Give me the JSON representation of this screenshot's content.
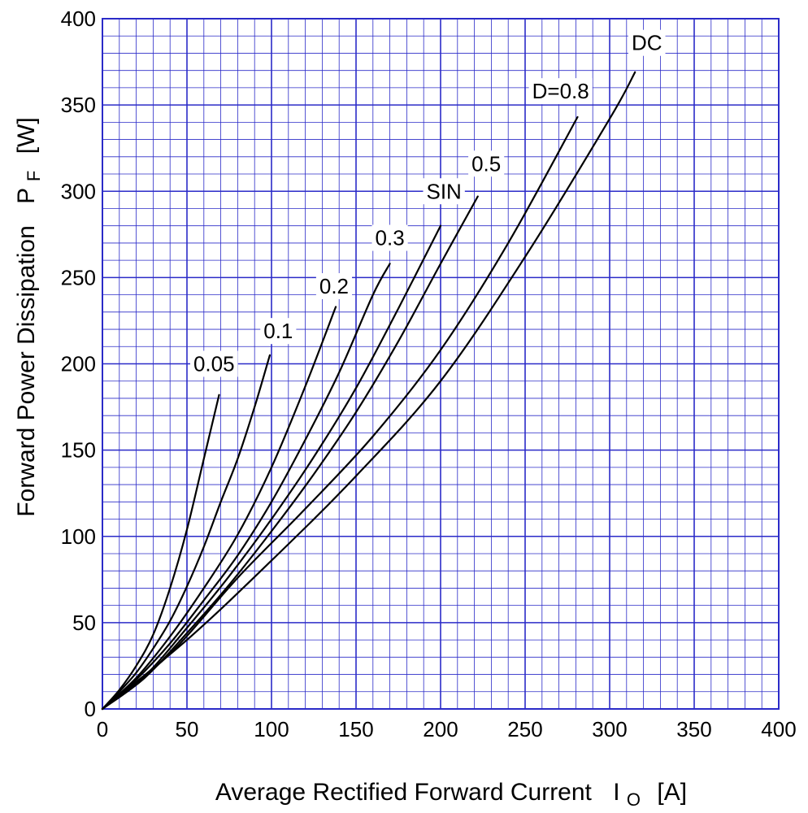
{
  "chart_data": {
    "type": "line",
    "title": "",
    "xlabel": {
      "main": "Average Rectified Forward Current",
      "symbol": "I",
      "subscript": "O",
      "unit": "[A]"
    },
    "ylabel": {
      "main": "Forward Power Dissipation",
      "symbol": "P",
      "subscript": "F",
      "unit": "[W]"
    },
    "xlim": [
      0,
      400
    ],
    "ylim": [
      0,
      400
    ],
    "x_ticks": [
      "0",
      "50",
      "100",
      "150",
      "200",
      "250",
      "300",
      "350",
      "400"
    ],
    "y_ticks": [
      "0",
      "50",
      "100",
      "150",
      "200",
      "250",
      "300",
      "350",
      "400"
    ],
    "x_tick_values": [
      0,
      50,
      100,
      150,
      200,
      250,
      300,
      350,
      400
    ],
    "y_tick_values": [
      0,
      50,
      100,
      150,
      200,
      250,
      300,
      350,
      400
    ],
    "grid": {
      "major_step": 50,
      "minor_step": 10,
      "color": "#2b2bc8"
    },
    "curve_color": "#000000",
    "series": [
      {
        "name": "0.05",
        "label": "0.05",
        "x": [
          0,
          10,
          20,
          30,
          40,
          50,
          60,
          69
        ],
        "y": [
          0,
          11,
          25,
          43,
          70,
          104,
          145,
          182
        ]
      },
      {
        "name": "0.1",
        "label": "0.1",
        "x": [
          0,
          10,
          20,
          30,
          40,
          50,
          60,
          70,
          80,
          90,
          99
        ],
        "y": [
          0,
          10,
          21,
          35,
          51,
          71,
          94,
          120,
          145,
          175,
          205
        ]
      },
      {
        "name": "0.2",
        "label": "0.2",
        "x": [
          0,
          20,
          40,
          60,
          80,
          100,
          120,
          138
        ],
        "y": [
          0,
          18,
          42,
          70,
          101,
          140,
          187,
          233
        ]
      },
      {
        "name": "0.3",
        "label": "0.3",
        "x": [
          0,
          20,
          40,
          60,
          80,
          100,
          120,
          140,
          160,
          170
        ],
        "y": [
          0,
          17,
          38,
          63,
          89,
          120,
          156,
          195,
          240,
          258
        ]
      },
      {
        "name": "SIN",
        "label": "SIN",
        "x": [
          0,
          25,
          50,
          75,
          100,
          125,
          150,
          175,
          200
        ],
        "y": [
          0,
          19,
          47,
          77,
          110,
          146,
          186,
          232,
          280
        ]
      },
      {
        "name": "0.5",
        "label": "0.5",
        "x": [
          0,
          25,
          50,
          75,
          100,
          125,
          150,
          175,
          200,
          222
        ],
        "y": [
          0,
          18,
          44,
          72,
          103,
          136,
          172,
          213,
          258,
          297
        ]
      },
      {
        "name": "D=0.8",
        "label": "D=0.8",
        "x": [
          0,
          40,
          80,
          120,
          160,
          200,
          240,
          281
        ],
        "y": [
          0,
          32,
          76,
          116,
          158,
          208,
          270,
          343
        ]
      },
      {
        "name": "DC",
        "label": "DC",
        "x": [
          0,
          50,
          100,
          150,
          200,
          250,
          300,
          315
        ],
        "y": [
          0,
          40,
          86,
          135,
          190,
          262,
          342,
          369
        ]
      }
    ],
    "labels": [
      {
        "text": "0.05",
        "x": 66,
        "y": 200
      },
      {
        "text": "0.1",
        "x": 104,
        "y": 219
      },
      {
        "text": "0.2",
        "x": 137,
        "y": 245
      },
      {
        "text": "0.3",
        "x": 170,
        "y": 273
      },
      {
        "text": "SIN",
        "x": 202,
        "y": 300
      },
      {
        "text": "0.5",
        "x": 227,
        "y": 316
      },
      {
        "text": "D=0.8",
        "x": 271,
        "y": 358
      },
      {
        "text": "DC",
        "x": 322,
        "y": 386
      }
    ]
  }
}
